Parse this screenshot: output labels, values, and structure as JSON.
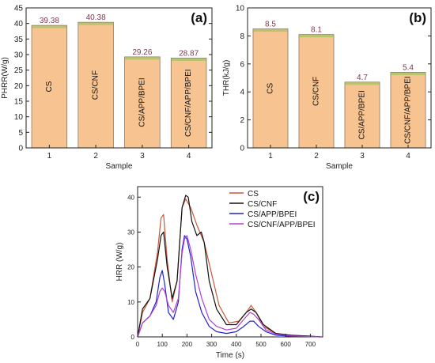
{
  "colors": {
    "bar_fill": "#f6c391",
    "bar_stroke": "#8a7a66",
    "bar_top": "#b9c56e",
    "value_label": "#7a3a55",
    "axis": "#222222",
    "cs": "#c8583a",
    "cs_cnf": "#111111",
    "cs_app_bpei": "#2222cc",
    "cs_cnf_app_bpei": "#b040d8"
  },
  "chart_data": [
    {
      "type": "bar",
      "panel_label": "(a)",
      "categories": [
        "1",
        "2",
        "3",
        "4"
      ],
      "bar_names": [
        "CS",
        "CS/CNF",
        "CS/APP/BPEI",
        "CS/CNF/APP/BPEI"
      ],
      "values": [
        39.38,
        40.38,
        29.26,
        28.87
      ],
      "value_labels": [
        "39.38",
        "40.38",
        "29.26",
        "28.87"
      ],
      "xlabel": "Sample",
      "ylabel": "PHRR(W/g)",
      "ylim": [
        0,
        45
      ],
      "yticks": [
        "0",
        "5",
        "10",
        "15",
        "20",
        "25",
        "30",
        "35",
        "40",
        "45"
      ],
      "grid": false
    },
    {
      "type": "bar",
      "panel_label": "(b)",
      "categories": [
        "1",
        "2",
        "3",
        "4"
      ],
      "bar_names": [
        "CS",
        "CS/CNF",
        "CS/APP/BPEI",
        "CS/CNF/APP/BPEI"
      ],
      "values": [
        8.5,
        8.1,
        4.7,
        5.4
      ],
      "value_labels": [
        "8.5",
        "8.1",
        "4.7",
        "5.4"
      ],
      "xlabel": "Sample",
      "ylabel": "THR(kJ/g)",
      "ylim": [
        0,
        10
      ],
      "yticks": [
        "0",
        "2",
        "4",
        "6",
        "8",
        "10"
      ],
      "grid": false
    },
    {
      "type": "line",
      "panel_label": "(c)",
      "xlabel": "Time (s)",
      "ylabel": "HRR (W/g)",
      "xlim": [
        0,
        750
      ],
      "ylim": [
        0,
        43
      ],
      "xticks": [
        "0",
        "100",
        "200",
        "300",
        "400",
        "500",
        "600",
        "700"
      ],
      "yticks": [
        "0",
        "10",
        "20",
        "30",
        "40"
      ],
      "legend_position": "top-right",
      "grid": false,
      "series": [
        {
          "name": "CS",
          "x": [
            0,
            20,
            50,
            80,
            95,
            105,
            120,
            140,
            160,
            180,
            195,
            215,
            240,
            270,
            300,
            330,
            370,
            410,
            440,
            460,
            480,
            510,
            560,
            620,
            700,
            740
          ],
          "y": [
            0,
            7,
            11,
            24,
            34,
            35,
            22,
            10,
            16,
            37,
            39.5,
            37,
            32,
            27,
            18,
            9,
            4,
            4.5,
            7,
            9,
            7,
            3,
            1,
            0.5,
            0.2,
            0
          ]
        },
        {
          "name": "CS/CNF",
          "x": [
            0,
            20,
            50,
            80,
            95,
            105,
            120,
            140,
            160,
            180,
            195,
            205,
            220,
            240,
            258,
            270,
            290,
            320,
            360,
            400,
            440,
            460,
            480,
            510,
            560,
            620,
            700,
            740
          ],
          "y": [
            0,
            8,
            11,
            22,
            29,
            30,
            20,
            11,
            16,
            37,
            40.5,
            40,
            33,
            29,
            30,
            27,
            16,
            8,
            3.5,
            3.5,
            7,
            8,
            7,
            3.5,
            1,
            0.5,
            0.2,
            0
          ]
        },
        {
          "name": "CS/APP/BPEI",
          "x": [
            0,
            20,
            50,
            75,
            90,
            100,
            110,
            125,
            145,
            165,
            180,
            190,
            200,
            215,
            235,
            260,
            290,
            320,
            360,
            400,
            430,
            455,
            470,
            490,
            520,
            560,
            620,
            700,
            740
          ],
          "y": [
            0,
            4,
            6,
            10,
            17,
            19,
            15,
            7,
            5,
            10,
            25,
            29,
            28,
            23,
            13,
            7,
            3,
            1.5,
            1,
            1.5,
            3,
            4.5,
            4.5,
            3,
            1.5,
            0.5,
            0.2,
            0.1,
            0
          ]
        },
        {
          "name": "CS/CNF/APP/BPEI",
          "x": [
            0,
            20,
            50,
            75,
            90,
            100,
            110,
            125,
            145,
            165,
            180,
            190,
            200,
            215,
            235,
            260,
            290,
            320,
            360,
            400,
            430,
            455,
            470,
            490,
            520,
            560,
            620,
            700,
            740
          ],
          "y": [
            0,
            4,
            6,
            9,
            13,
            14,
            13,
            9,
            7,
            11,
            24,
            28,
            29,
            25,
            18,
            11,
            5,
            3,
            2,
            2.5,
            5,
            7,
            6.5,
            5,
            2,
            0.8,
            0.3,
            0.1,
            0
          ]
        }
      ]
    }
  ]
}
